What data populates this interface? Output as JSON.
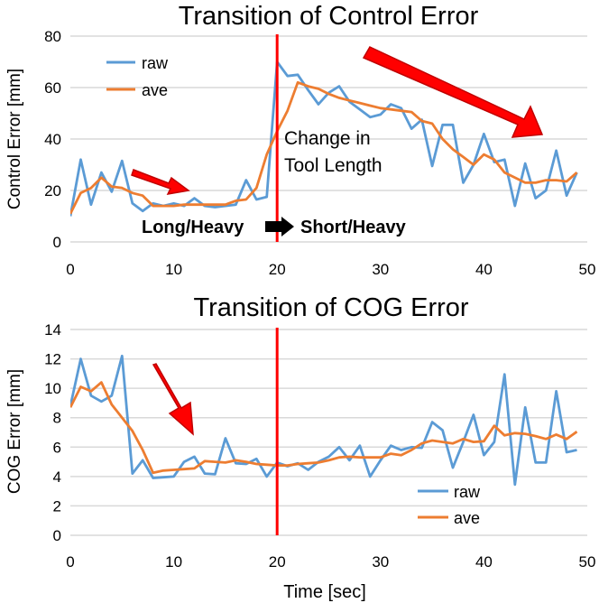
{
  "colors": {
    "raw": "#5b9bd5",
    "ave": "#ed7d31",
    "divider": "#ff0000",
    "annotation": "#ff0000",
    "arrow_fill": "#ff0000",
    "arrow_stroke": "#c00000",
    "transition_arrow": "#000000"
  },
  "xlabel": "Time [sec]",
  "chart_data": [
    {
      "type": "line",
      "title": "Transition of Control Error",
      "xlabel": "",
      "ylabel": "Control Error [mm]",
      "xlim": [
        0,
        50
      ],
      "ylim": [
        0,
        80
      ],
      "xticks": [
        0,
        10,
        20,
        30,
        40,
        50
      ],
      "yticks": [
        0,
        20,
        40,
        60,
        80
      ],
      "grid": "horizontal",
      "legend": "top-left",
      "vline_x": 20,
      "x": [
        0,
        1,
        2,
        3,
        4,
        5,
        6,
        7,
        8,
        9,
        10,
        11,
        12,
        13,
        14,
        15,
        16,
        17,
        18,
        19,
        20,
        21,
        22,
        23,
        24,
        25,
        26,
        27,
        28,
        29,
        30,
        31,
        32,
        33,
        34,
        35,
        36,
        37,
        38,
        39,
        40,
        41,
        42,
        43,
        44,
        45,
        46,
        47,
        48,
        49
      ],
      "series": [
        {
          "name": "raw",
          "values": [
            10,
            32,
            14.5,
            27,
            19.5,
            31.5,
            15,
            12,
            15,
            14,
            15,
            14,
            17,
            14,
            13.5,
            14,
            14.5,
            24,
            16.5,
            17.5,
            70,
            64.5,
            65,
            59,
            53.5,
            58,
            60.5,
            54.5,
            51.5,
            48.5,
            49.5,
            53.5,
            52,
            44,
            47.5,
            29.5,
            45.5,
            45.5,
            23,
            30,
            42,
            31,
            32,
            14,
            30.5,
            17,
            20,
            35.5,
            18,
            27
          ]
        },
        {
          "name": "ave",
          "values": [
            11,
            19,
            21,
            25,
            21.5,
            21,
            19,
            18,
            14,
            14,
            14,
            14.5,
            14.5,
            14.5,
            14.5,
            14.5,
            16,
            16.5,
            21,
            34,
            43,
            51,
            62,
            60.5,
            59.5,
            57.5,
            56,
            55,
            54,
            53,
            52,
            51.5,
            51,
            50.5,
            47,
            46,
            40,
            36,
            33,
            30,
            34,
            32,
            27,
            25,
            23,
            23,
            24,
            24,
            23.5,
            27
          ]
        }
      ],
      "annotations": {
        "change_label": [
          "Change in",
          "Tool Length"
        ],
        "from_label": "Long/Heavy",
        "to_label": "Short/Heavy"
      }
    },
    {
      "type": "line",
      "title": "Transition of COG Error",
      "xlabel": "Time [sec]",
      "ylabel": "COG Error [mm]",
      "xlim": [
        0,
        50
      ],
      "ylim": [
        0,
        14
      ],
      "xticks": [
        0,
        10,
        20,
        30,
        40,
        50
      ],
      "yticks": [
        0,
        2,
        4,
        6,
        8,
        10,
        12,
        14
      ],
      "grid": "horizontal",
      "legend": "bottom-right",
      "vline_x": 20,
      "x": [
        0,
        1,
        2,
        3,
        4,
        5,
        6,
        7,
        8,
        9,
        10,
        11,
        12,
        13,
        14,
        15,
        16,
        17,
        18,
        19,
        20,
        21,
        22,
        23,
        24,
        25,
        26,
        27,
        28,
        29,
        30,
        31,
        32,
        33,
        34,
        35,
        36,
        37,
        38,
        39,
        40,
        41,
        42,
        43,
        44,
        45,
        46,
        47,
        48,
        49
      ],
      "series": [
        {
          "name": "raw",
          "values": [
            8.8,
            12,
            9.5,
            9.1,
            9.5,
            12.2,
            4.2,
            5.1,
            3.9,
            3.95,
            4.0,
            5.0,
            5.35,
            4.2,
            4.15,
            6.6,
            4.9,
            4.85,
            5.2,
            4.0,
            4.95,
            4.7,
            4.9,
            4.45,
            5.0,
            5.35,
            6.0,
            5.1,
            6.1,
            4.0,
            5.1,
            6.1,
            5.8,
            6.0,
            5.95,
            7.7,
            7.15,
            4.6,
            6.35,
            8.2,
            5.45,
            6.35,
            10.95,
            3.45,
            8.7,
            4.95,
            4.95,
            9.8,
            5.65,
            5.8
          ]
        },
        {
          "name": "ave",
          "values": [
            8.7,
            10.1,
            9.8,
            10.4,
            8.9,
            8.0,
            7.1,
            5.8,
            4.25,
            4.4,
            4.45,
            4.5,
            4.55,
            5.05,
            5.0,
            4.95,
            5.1,
            5.0,
            4.85,
            4.8,
            4.75,
            4.75,
            4.85,
            4.9,
            4.95,
            5.1,
            5.3,
            5.35,
            5.3,
            5.3,
            5.3,
            5.55,
            5.45,
            5.8,
            6.25,
            6.45,
            6.35,
            6.25,
            6.55,
            6.35,
            6.4,
            7.45,
            6.8,
            6.95,
            6.9,
            6.75,
            6.55,
            6.85,
            6.55,
            7.05
          ]
        }
      ]
    }
  ]
}
